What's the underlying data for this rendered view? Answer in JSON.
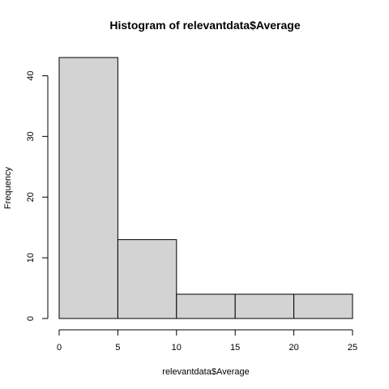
{
  "chart_data": {
    "type": "bar",
    "title": "Histogram of relevantdata$Average",
    "xlabel": "relevantdata$Average",
    "ylabel": "Frequency",
    "bins": [
      {
        "start": 0,
        "end": 5,
        "count": 43
      },
      {
        "start": 5,
        "end": 10,
        "count": 13
      },
      {
        "start": 10,
        "end": 15,
        "count": 4
      },
      {
        "start": 15,
        "end": 20,
        "count": 4
      },
      {
        "start": 20,
        "end": 25,
        "count": 4
      }
    ],
    "xlim": [
      0,
      25
    ],
    "ylim": [
      0,
      43
    ],
    "xticks": [
      0,
      5,
      10,
      15,
      20,
      25
    ],
    "yticks": [
      0,
      10,
      20,
      30,
      40
    ],
    "bar_color": "#d3d3d3",
    "edge_color": "#000000",
    "grid": false
  }
}
